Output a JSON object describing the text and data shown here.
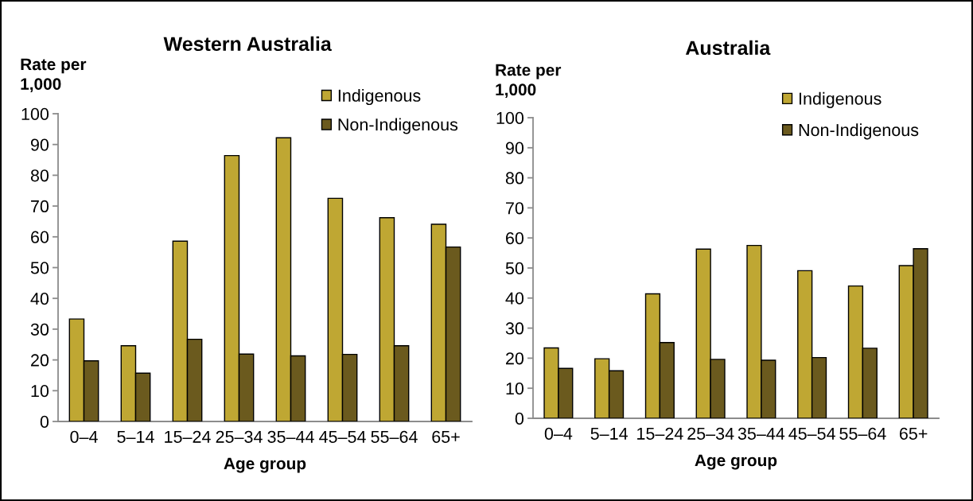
{
  "chart_data": [
    {
      "type": "bar",
      "title": "Western Australia",
      "ylabel": "Rate per\n1,000",
      "xlabel": "Age group",
      "categories": [
        "0–4",
        "5–14",
        "15–24",
        "25–34",
        "35–44",
        "45–54",
        "55–64",
        "65+"
      ],
      "series": [
        {
          "name": "Indigenous",
          "color": "#bfa733",
          "values": [
            33.3,
            24.6,
            58.6,
            86.4,
            92.2,
            72.5,
            66.2,
            64.1
          ]
        },
        {
          "name": "Non-Indigenous",
          "color": "#6b5a1e",
          "values": [
            19.7,
            15.7,
            26.7,
            21.9,
            21.3,
            21.8,
            24.6,
            56.7
          ]
        }
      ],
      "ylim": [
        0,
        100
      ],
      "yticks": [
        0,
        10,
        20,
        30,
        40,
        50,
        60,
        70,
        80,
        90,
        100
      ],
      "legend": "top right"
    },
    {
      "type": "bar",
      "title": "Australia",
      "ylabel": "Rate per\n1,000",
      "xlabel": "Age group",
      "categories": [
        "0–4",
        "5–14",
        "15–24",
        "25–34",
        "35–44",
        "45–54",
        "55–64",
        "65+"
      ],
      "series": [
        {
          "name": "Indigenous",
          "color": "#bfa733",
          "values": [
            23.4,
            19.8,
            41.4,
            56.3,
            57.5,
            49.1,
            44.0,
            50.8
          ]
        },
        {
          "name": "Non-Indigenous",
          "color": "#6b5a1e",
          "values": [
            16.6,
            15.8,
            25.2,
            19.6,
            19.3,
            20.2,
            23.3,
            56.4
          ]
        }
      ],
      "ylim": [
        0,
        100
      ],
      "yticks": [
        0,
        10,
        20,
        30,
        40,
        50,
        60,
        70,
        80,
        90,
        100
      ],
      "legend": "top right"
    }
  ]
}
